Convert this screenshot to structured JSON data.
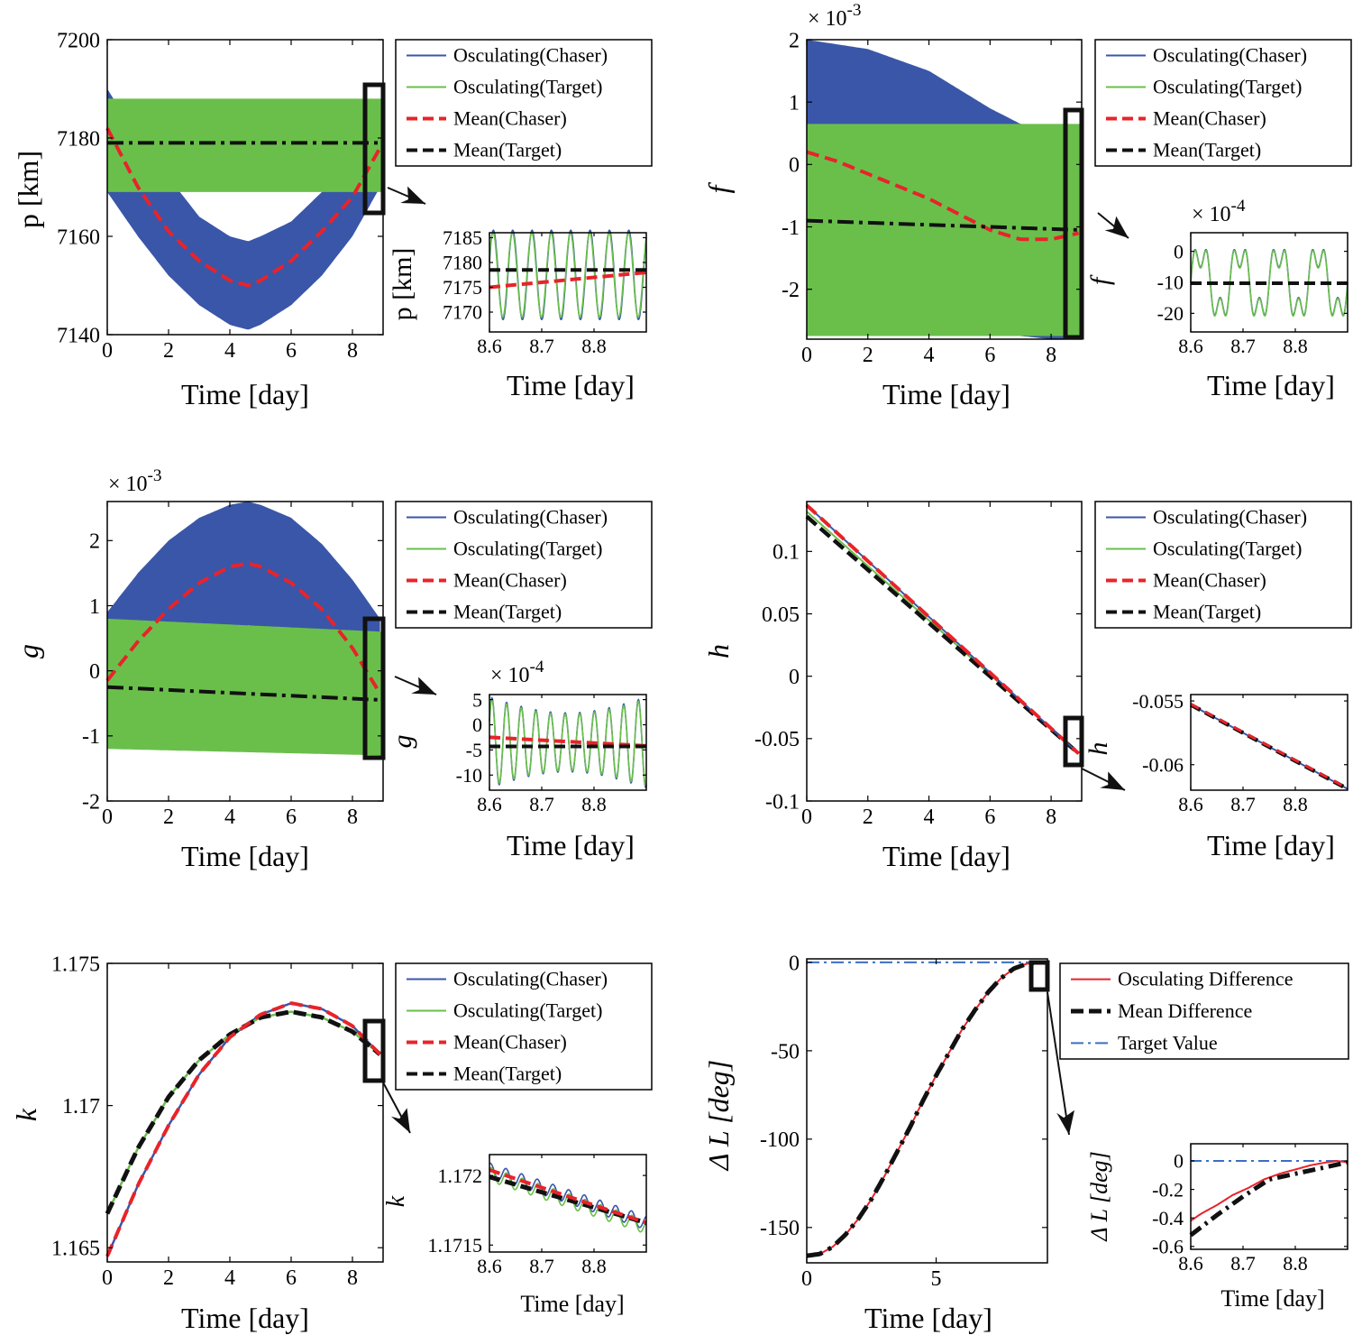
{
  "chart_data": [
    {
      "id": "p",
      "type": "line",
      "ylabel": "p  [km]",
      "xlabel": "Time  [day]",
      "xlim": [
        0,
        9
      ],
      "ylim": [
        7140,
        7200
      ],
      "xticks": [
        "0",
        "2",
        "4",
        "6",
        "8"
      ],
      "yticks": [
        "7140",
        "7160",
        "7180",
        "7200"
      ],
      "legend": [
        "Osculating(Chaser)",
        "Osculating(Target)",
        "Mean(Chaser)",
        "Mean(Target)"
      ],
      "series": [
        {
          "name": "Osculating(Chaser)",
          "x": [
            0,
            1,
            2,
            3,
            4,
            4.6,
            5,
            6,
            7,
            8,
            8.9
          ],
          "upper": [
            7190,
            7180,
            7172,
            7164,
            7160,
            7159,
            7160,
            7163,
            7169,
            7176,
            7185
          ],
          "lower": [
            7169,
            7160,
            7152,
            7146,
            7142,
            7141,
            7142,
            7146,
            7152,
            7160,
            7170
          ]
        },
        {
          "name": "Osculating(Target)",
          "x": [
            0,
            9
          ],
          "upper": [
            7188,
            7188
          ],
          "lower": [
            7169,
            7169
          ]
        },
        {
          "name": "Mean(Chaser)",
          "x": [
            0,
            1,
            2,
            3,
            4,
            4.6,
            5,
            6,
            7,
            8,
            8.9
          ],
          "values": [
            7182,
            7170,
            7161,
            7155,
            7151,
            7150,
            7151,
            7155,
            7161,
            7168,
            7178
          ]
        },
        {
          "name": "Mean(Target)",
          "x": [
            0,
            9
          ],
          "values": [
            7179,
            7179
          ]
        }
      ],
      "inset": {
        "ylabel": "p  [km]",
        "xlabel": "Time  [day]",
        "xlim": [
          8.6,
          8.9
        ],
        "ylim": [
          7166,
          7186
        ],
        "xticks": [
          "8.6",
          "8.7",
          "8.8"
        ],
        "yticks": [
          "7170",
          "7175",
          "7180",
          "7185"
        ],
        "osc_center": 7177.5,
        "osc_amp": 9,
        "osc_period": 0.037,
        "mean_chaser": [
          [
            8.6,
            7175
          ],
          [
            8.9,
            7178
          ]
        ],
        "mean_target": [
          [
            8.6,
            7178.5
          ],
          [
            8.9,
            7178.5
          ]
        ]
      }
    },
    {
      "id": "f",
      "type": "line",
      "ylabel": "f",
      "xlabel": "Time  [day]",
      "scale_label": "× 10^-3",
      "xlim": [
        0,
        9
      ],
      "ylim": [
        -2.8,
        2
      ],
      "xticks": [
        "0",
        "2",
        "4",
        "6",
        "8"
      ],
      "yticks": [
        "-2",
        "-1",
        "0",
        "1",
        "2"
      ],
      "legend": [
        "Osculating(Chaser)",
        "Osculating(Target)",
        "Mean(Chaser)",
        "Mean(Target)"
      ],
      "series": [
        {
          "name": "Osculating(Chaser)",
          "x": [
            0,
            2,
            4,
            6,
            7,
            8,
            8.9
          ],
          "upper": [
            2,
            1.85,
            1.5,
            0.9,
            0.65,
            0.6,
            0.6
          ],
          "lower": [
            -2.2,
            -2.3,
            -2.5,
            -2.6,
            -2.75,
            -2.8,
            -2.8
          ]
        },
        {
          "name": "Osculating(Target)",
          "x": [
            0,
            9
          ],
          "upper": [
            0.65,
            0.65
          ],
          "lower": [
            -2.75,
            -2.75
          ]
        },
        {
          "name": "Mean(Chaser)",
          "x": [
            0,
            1,
            2,
            3,
            4,
            5,
            6,
            7,
            8,
            8.9
          ],
          "values": [
            0.2,
            0.05,
            -0.15,
            -0.35,
            -0.55,
            -0.8,
            -1.05,
            -1.2,
            -1.2,
            -1.1
          ]
        },
        {
          "name": "Mean(Target)",
          "x": [
            0,
            9
          ],
          "values": [
            -0.9,
            -1.05
          ]
        }
      ],
      "inset": {
        "ylabel": "f",
        "xlabel": "Time  [day]",
        "scale_label": "× 10^-4",
        "xlim": [
          8.6,
          8.9
        ],
        "ylim": [
          -26,
          6
        ],
        "xticks": [
          "8.6",
          "8.7",
          "8.8"
        ],
        "yticks": [
          "0",
          "-10",
          "-20"
        ],
        "osc_center": -10,
        "osc_amp": 14,
        "osc_period": 0.075,
        "mean_chaser": [
          [
            8.6,
            -10.3
          ],
          [
            8.9,
            -10.3
          ]
        ],
        "mean_target": [
          [
            8.6,
            -10.3
          ],
          [
            8.9,
            -10.3
          ]
        ]
      }
    },
    {
      "id": "g",
      "type": "line",
      "ylabel": "g",
      "xlabel": "Time  [day]",
      "scale_label": "× 10^-3",
      "xlim": [
        0,
        9
      ],
      "ylim": [
        -2,
        2.6
      ],
      "xticks": [
        "0",
        "2",
        "4",
        "6",
        "8"
      ],
      "yticks": [
        "-2",
        "-1",
        "0",
        "1",
        "2"
      ],
      "legend": [
        "Osculating(Chaser)",
        "Osculating(Target)",
        "Mean(Chaser)",
        "Mean(Target)"
      ],
      "series": [
        {
          "name": "Osculating(Chaser)",
          "x": [
            0,
            1,
            2,
            3,
            4,
            4.6,
            5,
            6,
            7,
            8,
            8.9
          ],
          "upper": [
            0.9,
            1.5,
            2.0,
            2.35,
            2.55,
            2.6,
            2.55,
            2.35,
            1.95,
            1.4,
            0.8
          ],
          "lower": [
            -1.1,
            -0.6,
            -0.1,
            0.3,
            0.6,
            0.7,
            0.65,
            0.4,
            0.0,
            -0.6,
            -1.3
          ]
        },
        {
          "name": "Osculating(Target)",
          "x": [
            0,
            9
          ],
          "upper": [
            0.8,
            0.6
          ],
          "lower": [
            -1.2,
            -1.3
          ]
        },
        {
          "name": "Mean(Chaser)",
          "x": [
            0,
            1,
            2,
            3,
            4,
            4.6,
            5,
            6,
            7,
            8,
            8.9
          ],
          "values": [
            -0.15,
            0.45,
            0.95,
            1.35,
            1.6,
            1.65,
            1.6,
            1.35,
            0.95,
            0.35,
            -0.35
          ]
        },
        {
          "name": "Mean(Target)",
          "x": [
            0,
            9
          ],
          "values": [
            -0.25,
            -0.45
          ]
        }
      ],
      "inset": {
        "ylabel": "g",
        "xlabel": "Time  [day]",
        "scale_label": "× 10^-4",
        "xlim": [
          8.6,
          8.9
        ],
        "ylim": [
          -13,
          6
        ],
        "xticks": [
          "8.6",
          "8.7",
          "8.8"
        ],
        "yticks": [
          "5",
          "0",
          "-5",
          "-10"
        ],
        "osc_center": -3.5,
        "osc_amp": 9,
        "osc_period": 0.028,
        "mean_chaser": [
          [
            8.6,
            -2.5
          ],
          [
            8.9,
            -4.2
          ]
        ],
        "mean_target": [
          [
            8.6,
            -4.3
          ],
          [
            8.9,
            -4.3
          ]
        ]
      }
    },
    {
      "id": "h",
      "type": "line",
      "ylabel": "h",
      "xlabel": "Time  [day]",
      "xlim": [
        0,
        9
      ],
      "ylim": [
        -0.1,
        0.14
      ],
      "xticks": [
        "0",
        "2",
        "4",
        "6",
        "8"
      ],
      "yticks": [
        "-0.1",
        "-0.05",
        "0",
        "0.05",
        "0.1"
      ],
      "legend": [
        "Osculating(Chaser)",
        "Osculating(Target)",
        "Mean(Chaser)",
        "Mean(Target)"
      ],
      "series": [
        {
          "name": "Osculating(Chaser)",
          "x": [
            0,
            8.9
          ],
          "values": [
            0.137,
            -0.062
          ]
        },
        {
          "name": "Osculating(Target)",
          "x": [
            0,
            8.9
          ],
          "values": [
            0.132,
            -0.062
          ]
        },
        {
          "name": "Mean(Chaser)",
          "x": [
            0,
            8.9
          ],
          "values": [
            0.137,
            -0.062
          ]
        },
        {
          "name": "Mean(Target)",
          "x": [
            0,
            8.9
          ],
          "values": [
            0.128,
            -0.062
          ]
        }
      ],
      "inset": {
        "ylabel": "h",
        "xlabel": "Time  [day]",
        "xlim": [
          8.6,
          8.9
        ],
        "ylim": [
          -0.062,
          -0.0545
        ],
        "xticks": [
          "8.6",
          "8.7",
          "8.8"
        ],
        "yticks": [
          "-0.055",
          "-0.06"
        ],
        "lines": [
          [
            [
              8.6,
              -0.0553
            ],
            [
              8.9,
              -0.0619
            ]
          ]
        ]
      }
    },
    {
      "id": "k",
      "type": "line",
      "ylabel": "k",
      "xlabel": "Time  [day]",
      "xlim": [
        0,
        9
      ],
      "ylim": [
        1.1645,
        1.175
      ],
      "xticks": [
        "0",
        "2",
        "4",
        "6",
        "8"
      ],
      "yticks": [
        "1.165",
        "1.17",
        "1.175"
      ],
      "legend": [
        "Osculating(Chaser)",
        "Osculating(Target)",
        "Mean(Chaser)",
        "Mean(Target)"
      ],
      "series": [
        {
          "name": "Chaser",
          "x": [
            0,
            1,
            2,
            3,
            4,
            5,
            6,
            7,
            8,
            8.9
          ],
          "values": [
            1.1647,
            1.1672,
            1.1693,
            1.1711,
            1.1724,
            1.1732,
            1.1736,
            1.1734,
            1.1728,
            1.1718
          ]
        },
        {
          "name": "Target",
          "x": [
            0,
            1,
            2,
            3,
            4,
            5,
            6,
            7,
            8,
            8.9
          ],
          "values": [
            1.1662,
            1.1685,
            1.1703,
            1.1716,
            1.1725,
            1.1731,
            1.1733,
            1.1731,
            1.1726,
            1.1718
          ]
        }
      ],
      "inset": {
        "ylabel": "k",
        "xlabel": "Time  [day]",
        "xlim": [
          8.6,
          8.9
        ],
        "ylim": [
          1.17145,
          1.17215
        ],
        "xticks": [
          "8.6",
          "8.7",
          "8.8"
        ],
        "yticks": [
          "1.172",
          "1.1715"
        ],
        "osc_amp": 5e-05,
        "osc_period": 0.03,
        "mean_chaser": [
          [
            8.6,
            1.17204
          ],
          [
            8.9,
            1.17166
          ]
        ],
        "mean_target": [
          [
            8.6,
            1.17199
          ],
          [
            8.9,
            1.17166
          ]
        ]
      }
    },
    {
      "id": "L",
      "type": "line",
      "ylabel": "Δ L [deg]",
      "xlabel": "Time  [day]",
      "xlim": [
        0,
        9.3
      ],
      "ylim": [
        -170,
        2
      ],
      "xticks": [
        "0",
        "5"
      ],
      "yticks": [
        "0",
        "-50",
        "-100",
        "-150"
      ],
      "legend": [
        "Osculating  Difference",
        "Mean  Difference",
        "Target Value"
      ],
      "series": [
        {
          "name": "Mean  Difference",
          "x": [
            0,
            0.5,
            1,
            1.5,
            2,
            2.5,
            3,
            3.5,
            4,
            4.5,
            5,
            5.5,
            6,
            6.5,
            7,
            7.5,
            8,
            8.5,
            8.9
          ],
          "values": [
            -166,
            -165,
            -161,
            -154,
            -145,
            -134,
            -121,
            -107,
            -93,
            -78,
            -64,
            -51,
            -38,
            -27,
            -17,
            -9,
            -3.5,
            -0.8,
            0
          ]
        },
        {
          "name": "Target Value",
          "x": [
            0,
            9.3
          ],
          "values": [
            0,
            0
          ]
        }
      ],
      "inset": {
        "ylabel": "Δ L [deg]",
        "xlabel": "Time  [day]",
        "xlim": [
          8.6,
          8.9
        ],
        "ylim": [
          -0.62,
          0.12
        ],
        "xticks": [
          "8.6",
          "8.7",
          "8.8"
        ],
        "yticks": [
          "0",
          "-0.2",
          "-0.4",
          "-0.6"
        ],
        "osc": [
          [
            8.6,
            -0.42
          ],
          [
            8.62,
            -0.37
          ],
          [
            8.65,
            -0.31
          ],
          [
            8.68,
            -0.24
          ],
          [
            8.71,
            -0.19
          ],
          [
            8.74,
            -0.13
          ],
          [
            8.77,
            -0.09
          ],
          [
            8.8,
            -0.06
          ],
          [
            8.83,
            -0.03
          ],
          [
            8.86,
            -0.01
          ],
          [
            8.88,
            0.0
          ],
          [
            8.9,
            -0.01
          ]
        ],
        "mean": [
          [
            8.6,
            -0.52
          ],
          [
            8.65,
            -0.38
          ],
          [
            8.7,
            -0.25
          ],
          [
            8.75,
            -0.13
          ],
          [
            8.8,
            -0.09
          ],
          [
            8.85,
            -0.05
          ],
          [
            8.9,
            -0.01
          ]
        ],
        "target": [
          [
            8.6,
            0
          ],
          [
            8.9,
            0
          ]
        ]
      }
    }
  ],
  "colors": {
    "chaser_band": "#3a56a8",
    "target_band": "#6abf4b",
    "mean_chaser": "#e8232a",
    "mean_target": "#111111",
    "target_value": "#3b6fc4"
  }
}
